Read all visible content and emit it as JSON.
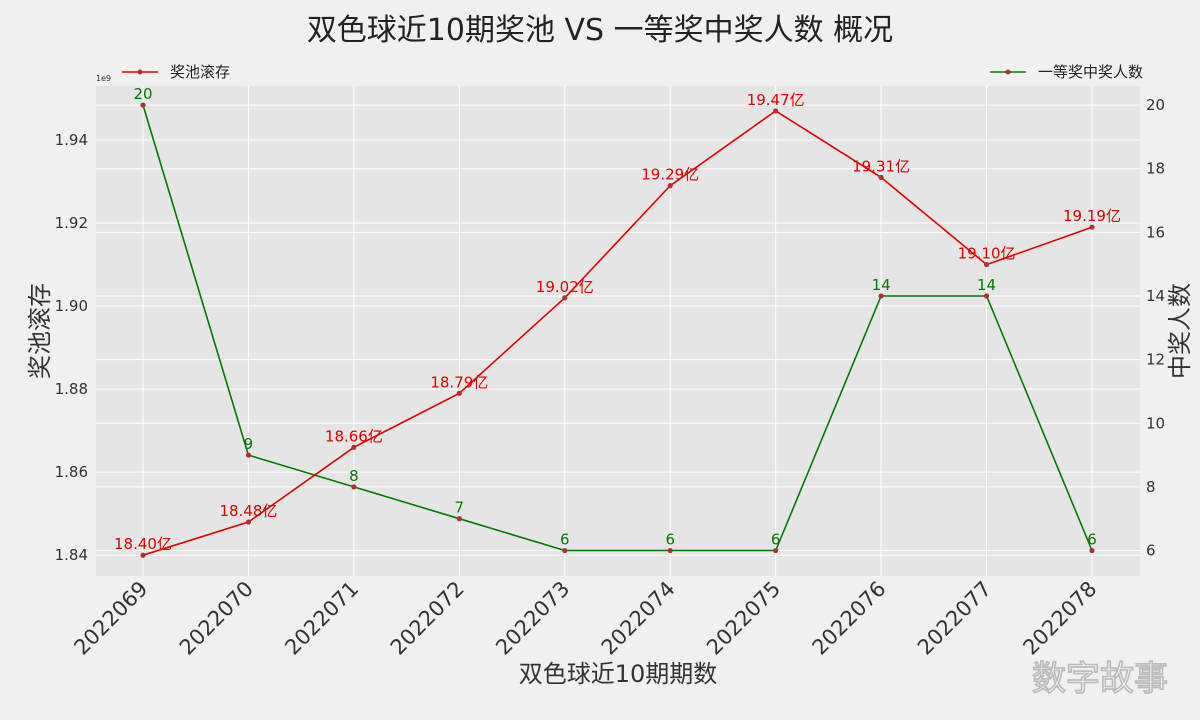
{
  "chart_data": {
    "type": "line",
    "title": "双色球近10期奖池 VS 一等奖中奖人数 概况",
    "xlabel": "双色球近10期期数",
    "ylabel_left": "奖池滚存",
    "ylabel_right": "中奖人数",
    "left_axis_exponent": "1e9",
    "categories": [
      "2022069",
      "2022070",
      "2022071",
      "2022072",
      "2022073",
      "2022074",
      "2022075",
      "2022076",
      "2022077",
      "2022078"
    ],
    "left_ylim": [
      1.835,
      1.953
    ],
    "left_yticks": [
      "1.84",
      "1.86",
      "1.88",
      "1.90",
      "1.92",
      "1.94"
    ],
    "left_ytick_values": [
      1.84,
      1.86,
      1.88,
      1.9,
      1.92,
      1.94
    ],
    "right_ylim": [
      5.2,
      20.6
    ],
    "right_yticks": [
      "6",
      "8",
      "10",
      "12",
      "14",
      "16",
      "18",
      "20"
    ],
    "right_ytick_values": [
      6,
      8,
      10,
      12,
      14,
      16,
      18,
      20
    ],
    "grid": true,
    "series": [
      {
        "name": "奖池滚存",
        "axis": "left",
        "color": "#e00000",
        "values": [
          1.84,
          1.848,
          1.866,
          1.879,
          1.902,
          1.929,
          1.947,
          1.931,
          1.91,
          1.919
        ],
        "labels": [
          "18.40亿",
          "18.48亿",
          "18.66亿",
          "18.79亿",
          "19.02亿",
          "19.29亿",
          "19.47亿",
          "19.31亿",
          "19.10亿",
          "19.19亿"
        ]
      },
      {
        "name": "一等奖中奖人数",
        "axis": "right",
        "color": "#007a00",
        "values": [
          20,
          9,
          8,
          7,
          6,
          6,
          6,
          14,
          14,
          6
        ],
        "labels": [
          "20",
          "9",
          "8",
          "7",
          "6",
          "6",
          "6",
          "14",
          "14",
          "6"
        ]
      }
    ],
    "legend_left": "奖池滚存",
    "legend_right": "一等奖中奖人数",
    "marker_color": "#b03030"
  },
  "watermark": "数字故事"
}
